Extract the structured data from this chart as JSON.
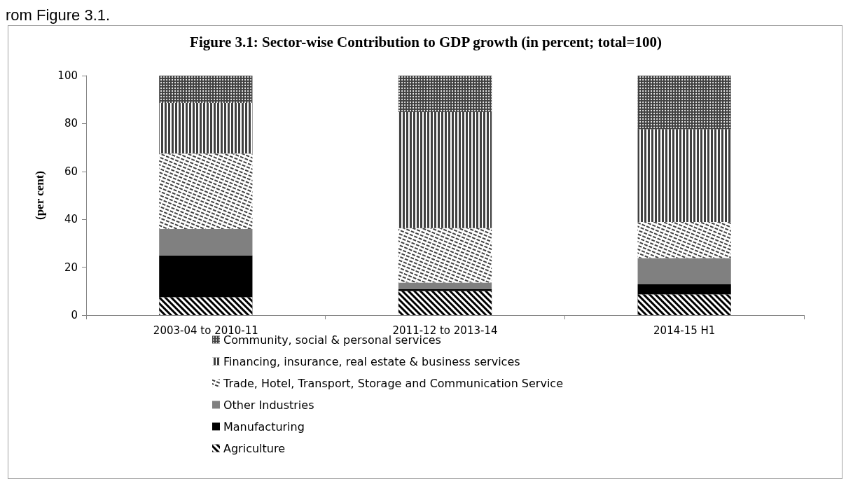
{
  "chart_data": {
    "type": "bar",
    "stacked": true,
    "title": "Figure 3.1: Sector-wise Contribution to GDP growth (in percent; total=100)",
    "ylabel": "(per cent)",
    "annotations": [
      "rom Figure 3.1."
    ],
    "categories": [
      "2003-04 to 2010-11",
      "2011-12 to 2013-14",
      "2014-15 H1"
    ],
    "series": [
      {
        "name": "Agriculture",
        "color": "#000000",
        "values": [
          7.5,
          10.1,
          8.7
        ]
      },
      {
        "name": "Manufacturing",
        "color": "#000000",
        "values": [
          17.4,
          0.7,
          4.2
        ]
      },
      {
        "name": "Other Industries",
        "color": "#808080",
        "values": [
          11.1,
          2.8,
          10.9
        ]
      },
      {
        "name": "Trade, Hotel, Transport, Storage and Communication Service",
        "color": "#ffffff",
        "values": [
          31.5,
          22.7,
          15.1
        ]
      },
      {
        "name": "Financing, insurance, real estate & business services",
        "color": "#404040",
        "values": [
          21.1,
          48.5,
          38.8
        ]
      },
      {
        "name": "Community, social & personal services",
        "color": "#404040",
        "values": [
          11.4,
          15.2,
          22.3
        ]
      }
    ],
    "ylim": [
      0,
      100
    ],
    "yticks": [
      0,
      20,
      40,
      60,
      80,
      100
    ],
    "grid": false,
    "legend": "bottom"
  }
}
